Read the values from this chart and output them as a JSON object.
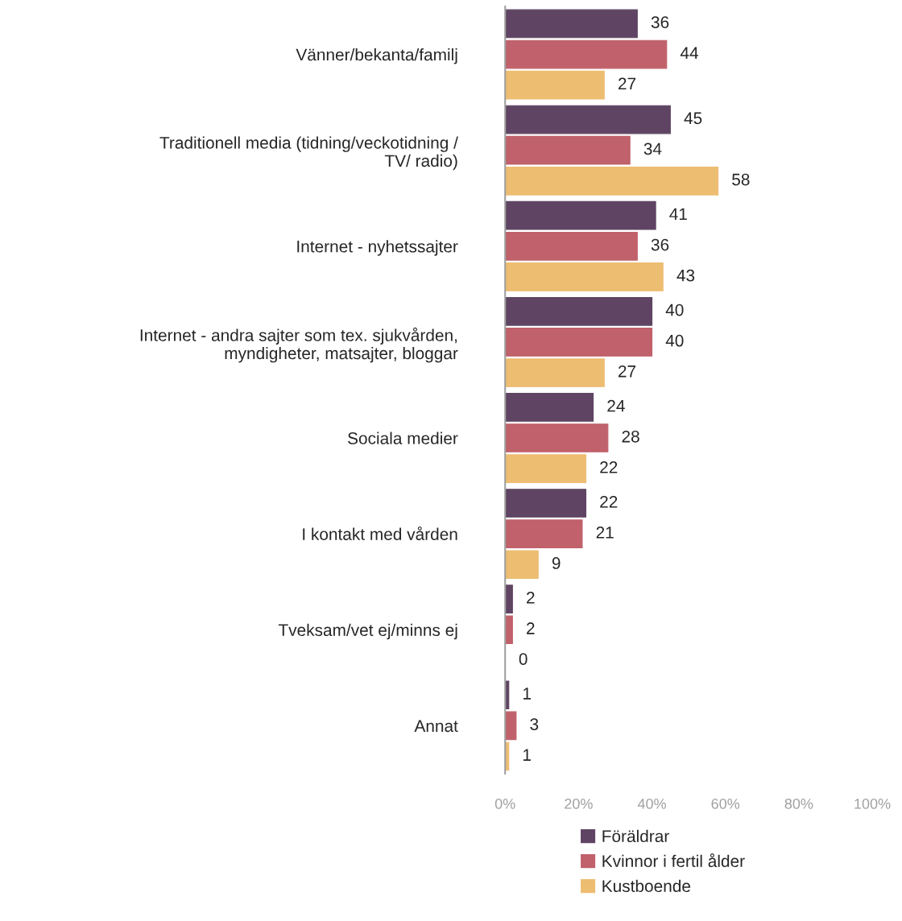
{
  "chart_data": {
    "type": "bar",
    "orientation": "horizontal",
    "categories": [
      "Vänner/bekanta/familj",
      "Traditionell media (tidning/veckotidning /\nTV/ radio)",
      "Internet - nyhetssajter",
      "Internet - andra sajter som tex. sjukvården,\nmyndigheter, matsajter, bloggar",
      "Sociala medier",
      "I kontakt med vården",
      "Tveksam/vet ej/minns ej",
      "Annat"
    ],
    "series": [
      {
        "name": "Föräldrar",
        "color": "#5f4563",
        "values": [
          36,
          45,
          41,
          40,
          24,
          22,
          2,
          1
        ]
      },
      {
        "name": "Kvinnor i fertil ålder",
        "color": "#c0616b",
        "values": [
          44,
          34,
          36,
          40,
          28,
          21,
          2,
          3
        ]
      },
      {
        "name": "Kustboende",
        "color": "#edbd72",
        "values": [
          27,
          58,
          43,
          27,
          22,
          9,
          0,
          1
        ]
      }
    ],
    "xlim": [
      0,
      100
    ],
    "xticks": [
      {
        "value": 0,
        "label": "0%"
      },
      {
        "value": 20,
        "label": "20%"
      },
      {
        "value": 40,
        "label": "40%"
      },
      {
        "value": 60,
        "label": "60%"
      },
      {
        "value": 80,
        "label": "80%"
      },
      {
        "value": 100,
        "label": "100%"
      }
    ],
    "data_labels": true,
    "grid": false,
    "legend": "bottom"
  }
}
